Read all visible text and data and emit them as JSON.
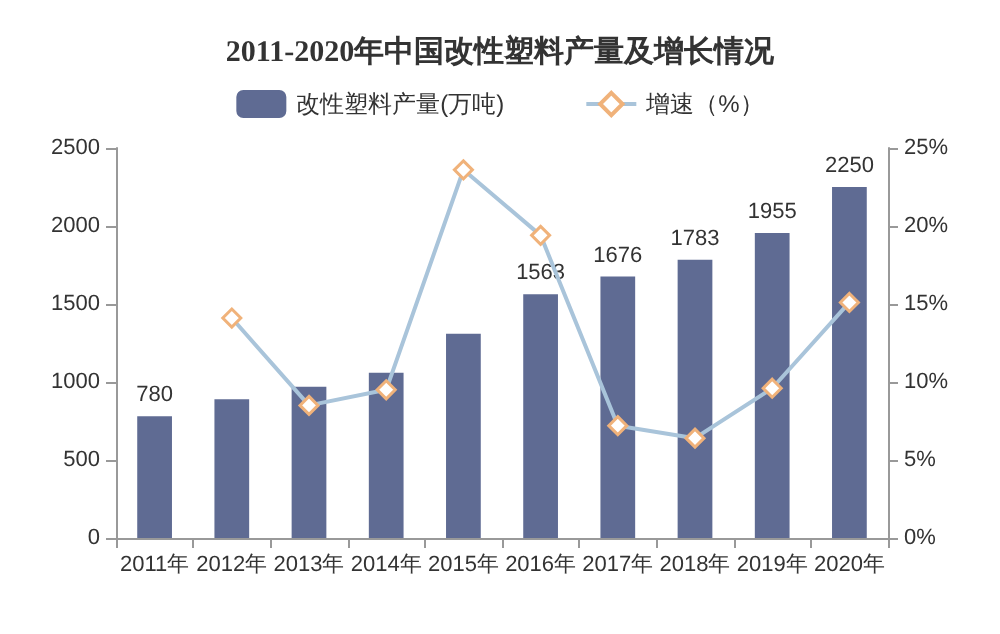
{
  "chart_data": {
    "type": "bar",
    "title": "2011-2020年中国改性塑料产量及增长情况",
    "categories": [
      "2011年",
      "2012年",
      "2013年",
      "2014年",
      "2015年",
      "2016年",
      "2017年",
      "2018年",
      "2019年",
      "2020年"
    ],
    "series": [
      {
        "name": "改性塑料产量(万吨)",
        "color": "#5f6b93",
        "values": [
          780,
          890,
          970,
          1060,
          1310,
          1563,
          1676,
          1783,
          1955,
          2250
        ],
        "value_labels": [
          "780",
          null,
          null,
          null,
          null,
          "1563",
          "1676",
          "1783",
          "1955",
          "2250"
        ]
      },
      {
        "name": "增速（%）",
        "type": "line",
        "axis": "y2",
        "color": "#a9c4da",
        "marker": "diamond",
        "values": [
          null,
          14.1,
          8.5,
          9.5,
          23.6,
          19.4,
          7.2,
          6.4,
          9.6,
          15.1
        ]
      }
    ],
    "ylim": [
      0,
      2500
    ],
    "yticks": [
      0,
      500,
      1000,
      1500,
      2000,
      2500
    ],
    "y2lim": [
      0,
      25
    ],
    "y2ticks": [
      {
        "value": 0,
        "label": "0%"
      },
      {
        "value": 5,
        "label": "5%"
      },
      {
        "value": 10,
        "label": "10%"
      },
      {
        "value": 15,
        "label": "15%"
      },
      {
        "value": 20,
        "label": "20%"
      },
      {
        "value": 25,
        "label": "25%"
      }
    ],
    "grid": false,
    "legend": "top"
  }
}
